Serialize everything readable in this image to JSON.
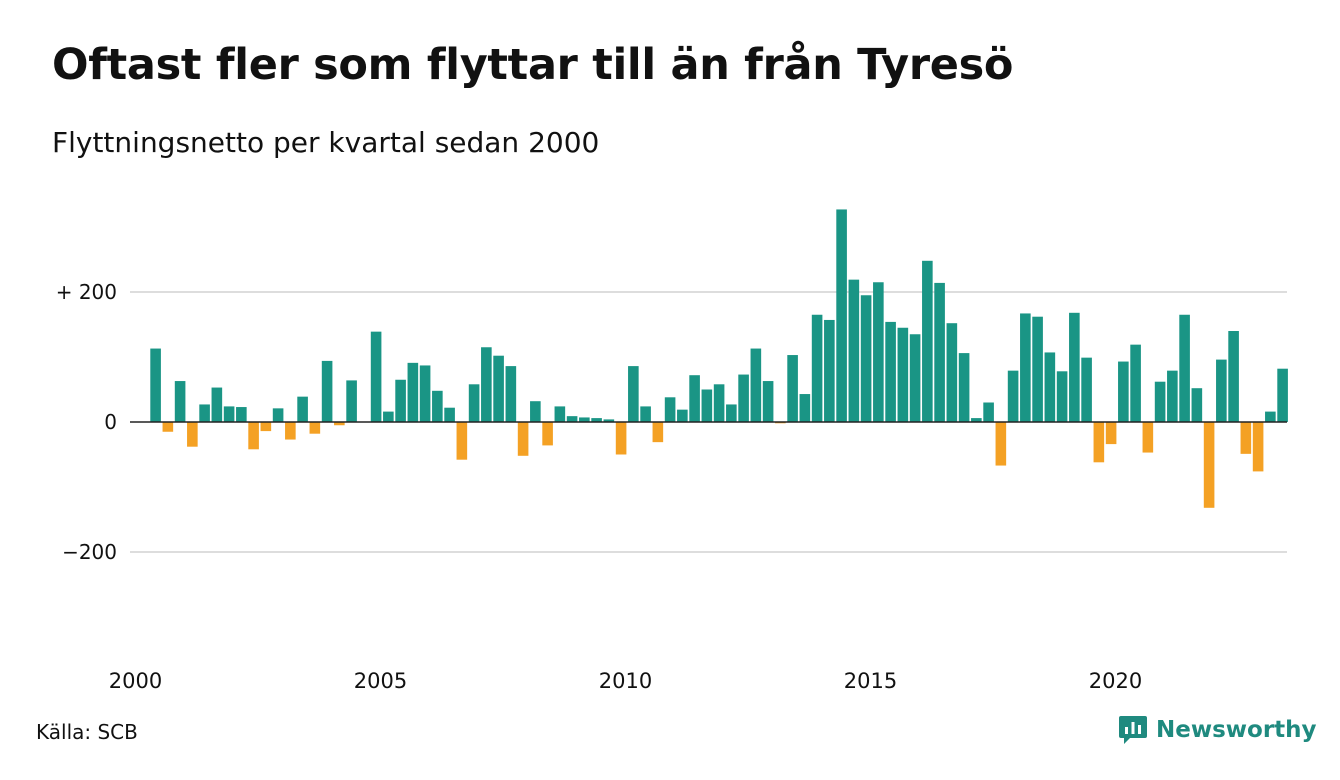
{
  "title": "Oftast fler som flyttar till än från Tyresö",
  "subtitle": "Flyttningsnetto per kvartal sedan 2000",
  "source": "Källa: SCB",
  "brand": {
    "name": "Newsworthy",
    "icon": "newsworthy-logo-icon"
  },
  "colors": {
    "positive": "#1a9585",
    "negative": "#f4a124",
    "grid": "#dddddd",
    "zero_line": "#222222"
  },
  "chart_data": {
    "type": "bar",
    "title": "Oftast fler som flyttar till än från Tyresö",
    "subtitle": "Flyttningsnetto per kvartal sedan 2000",
    "x_start": "2000-Q1",
    "frequency": "quarterly",
    "xlabel": "",
    "ylabel": "",
    "ylim": [
      -330,
      330
    ],
    "y_ticks": [
      {
        "value": 200,
        "label": "+ 200"
      },
      {
        "value": 0,
        "label": "0"
      },
      {
        "value": -200,
        "label": "−200"
      }
    ],
    "x_ticks": [
      {
        "year": 2000,
        "label": "2000"
      },
      {
        "year": 2005,
        "label": "2005"
      },
      {
        "year": 2010,
        "label": "2010"
      },
      {
        "year": 2015,
        "label": "2015"
      },
      {
        "year": 2020,
        "label": "2020"
      }
    ],
    "grid": true,
    "values": [
      113,
      -15,
      63,
      -38,
      27,
      53,
      24,
      23,
      -42,
      -14,
      21,
      -27,
      39,
      -18,
      94,
      -5,
      64,
      0,
      139,
      16,
      65,
      91,
      87,
      48,
      22,
      -58,
      58,
      115,
      102,
      86,
      -52,
      32,
      -36,
      24,
      9,
      7,
      6,
      4,
      -50,
      86,
      24,
      -31,
      38,
      19,
      72,
      50,
      58,
      27,
      73,
      113,
      63,
      -2,
      103,
      43,
      165,
      157,
      327,
      219,
      195,
      215,
      154,
      145,
      135,
      248,
      214,
      152,
      106,
      6,
      30,
      -67,
      79,
      167,
      162,
      107,
      78,
      168,
      99,
      -62,
      -34,
      93,
      119,
      -47,
      62,
      79,
      165,
      52,
      -132,
      96,
      140,
      -49,
      -76,
      16,
      82
    ]
  }
}
